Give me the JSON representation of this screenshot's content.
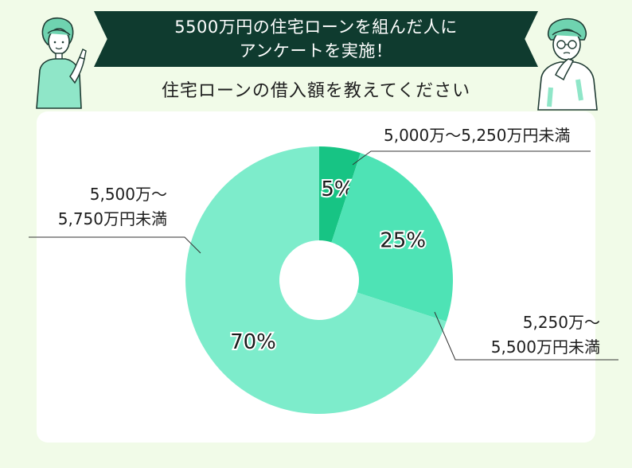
{
  "banner": {
    "line1": "5500万円の住宅ローンを組んだ人に",
    "line2": "アンケートを実施！"
  },
  "subtitle": "住宅ローンの借入額を教えてください",
  "chart_data": {
    "type": "pie",
    "title": "",
    "slices": [
      {
        "label_line1": "5,000万〜5,250万円未満",
        "label_line2": "",
        "value": 5,
        "value_label": "5%",
        "color": "#17c484"
      },
      {
        "label_line1": "5,250万〜",
        "label_line2": "5,500万円未満",
        "value": 25,
        "value_label": "25%",
        "color": "#4ee3b5"
      },
      {
        "label_line1": "5,500万〜",
        "label_line2": "5,750万円未満",
        "value": 70,
        "value_label": "70%",
        "color": "#7deccb"
      }
    ]
  },
  "colors": {
    "background": "#f1fbe8",
    "banner": "#0f3b2f",
    "card": "#ffffff",
    "line": "#333333"
  },
  "icons": {
    "left_person": "woman-pointing-illustration",
    "right_person": "man-thinking-illustration"
  }
}
